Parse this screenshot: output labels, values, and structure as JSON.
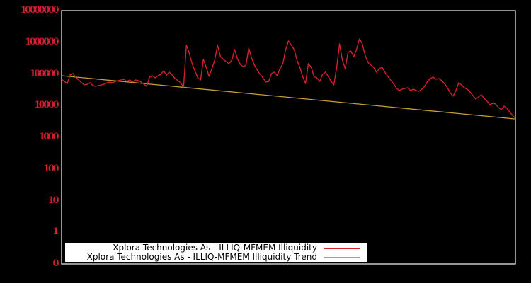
{
  "chart_data": {
    "type": "line",
    "title": "",
    "xlabel": "",
    "ylabel": "",
    "x_axis": {
      "tick_labels": []
    },
    "y_axis": {
      "scale": "log",
      "tick_labels": [
        "10000000",
        "1000000",
        "100000",
        "10000",
        "1000",
        "100",
        "10",
        "1",
        "0"
      ],
      "tick_values": [
        10000000,
        1000000,
        100000,
        10000,
        1000,
        100,
        10,
        1,
        0
      ],
      "label_color": "#d0202e"
    },
    "grid": "off",
    "plot": {
      "background": "#000000",
      "border_color": "#c6c6c6"
    },
    "legend": {
      "position": "bottom-left",
      "background": "#ffffff",
      "text_color": "#000000"
    },
    "series": [
      {
        "name": "Xplora Technologies As - ILLIQ-MFMEM Illiquidity",
        "color": "#d4212d",
        "values": [
          68000,
          58000,
          50000,
          93000,
          103000,
          79000,
          65000,
          53000,
          45000,
          47000,
          53000,
          43000,
          40500,
          43000,
          45000,
          47500,
          52500,
          55500,
          52500,
          58000,
          61500,
          64500,
          68000,
          58000,
          64500,
          55500,
          64500,
          61500,
          55500,
          47500,
          40500,
          79500,
          88000,
          75500,
          88000,
          97500,
          126000,
          92500,
          114000,
          92500,
          71500,
          61500,
          52500,
          38000,
          810000,
          457000,
          211000,
          126000,
          75500,
          64500,
          288000,
          163000,
          83500,
          147000,
          273000,
          810000,
          353000,
          288000,
          243000,
          211000,
          273000,
          590000,
          303000,
          200000,
          172000,
          190000,
          655000,
          318000,
          190000,
          133000,
          97500,
          75500,
          55500,
          58000,
          103000,
          114000,
          88000,
          147000,
          211000,
          590000,
          1100000,
          810000,
          590000,
          273000,
          163000,
          83500,
          50000,
          211000,
          163000,
          83500,
          75500,
          58000,
          97500,
          114000,
          83500,
          58000,
          45000,
          163000,
          890000,
          273000,
          147000,
          480000,
          533000,
          353000,
          590000,
          1280000,
          890000,
          390000,
          234000,
          190000,
          163000,
          114000,
          147000,
          163000,
          114000,
          83500,
          64500,
          50000,
          36700,
          29900,
          33100,
          34800,
          36700,
          29900,
          33100,
          29900,
          28400,
          33100,
          40600,
          58000,
          71500,
          79500,
          68000,
          71500,
          61500,
          50000,
          36700,
          25600,
          19800,
          29900,
          52500,
          45000,
          36700,
          33100,
          26900,
          20800,
          16100,
          18800,
          21900,
          17000,
          13800,
          10700,
          11800,
          11200,
          8700,
          7450,
          9600,
          8250,
          6300,
          4900,
          4010
        ]
      },
      {
        "name": "Xplora Technologies As - ILLIQ-MFMEM Illiquidity Trend",
        "color": "#c69f38",
        "trend": {
          "start": 88000,
          "end": 3800
        }
      }
    ]
  }
}
